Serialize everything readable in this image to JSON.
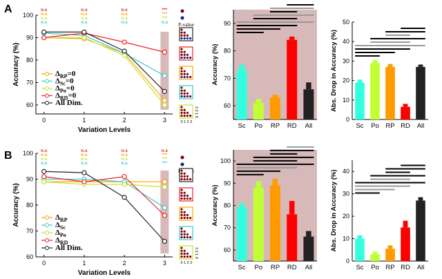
{
  "colors": {
    "rp": "#FFA500",
    "sc": "#33CCCC",
    "po": "#C8E030",
    "rd": "#EE2020",
    "all": "#222222",
    "shade": "#D7B9BA",
    "ns": "#7B0000",
    "s": "#1A1A8C",
    "bar_rp": "#FF9A00",
    "bar_sc": "#33FFE0",
    "bar_po": "#BFFF33",
    "bar_rd": "#FF0000",
    "bar_all": "#222222",
    "sig_black": "#000000",
    "sig_gray": "#999999"
  },
  "panels": [
    {
      "label": "A",
      "ns_rows": {
        "row_colors": [
          "rd",
          "rp",
          "po",
          "sc"
        ],
        "texts": [
          [
            "n.s",
            "n.s",
            "n.s",
            "***"
          ],
          [
            "n.s",
            "n.s",
            "n.s",
            "***"
          ],
          [
            "n.s",
            "n.s",
            "n.s",
            "***"
          ],
          [
            "n.s",
            "n.s",
            "n.s",
            "n.s"
          ]
        ]
      },
      "legend": {
        "n.s.": "n.s.",
        "s.": "s.",
        "p_value": "P-value",
        "axis_nums": [
          "0",
          "1",
          "2",
          "3"
        ],
        "axis_rev": "3 2 1 0"
      },
      "pvalue_grids": [
        {
          "color": "all",
          "s_count": 4
        },
        {
          "color": "rd",
          "s_count": 3
        },
        {
          "color": "rp",
          "s_count": 3
        },
        {
          "color": "sc",
          "s_count": 2
        },
        {
          "color": "po",
          "s_count": 0
        }
      ],
      "chart_data": [
        {
          "type": "line",
          "xlabel": "Variation Levels",
          "ylabel": "Accuracy (%)",
          "x": [
            0,
            1,
            2,
            3
          ],
          "xlim": [
            -0.2,
            3.2
          ],
          "ylim": [
            56,
            100
          ],
          "yticks": [
            60,
            70,
            80,
            90,
            100
          ],
          "shaded_x": 3,
          "legend_entries": [
            "ΔRP=0",
            "ΔSc=0",
            "ΔPo=0",
            "ΔRD=0",
            "All Dim."
          ],
          "series": [
            {
              "key": "rp",
              "name": "ΔRP=0",
              "values": [
                90,
                89.5,
                83,
                62
              ]
            },
            {
              "key": "sc",
              "name": "ΔSc=0",
              "values": [
                92,
                91,
                83,
                73
              ]
            },
            {
              "key": "po",
              "name": "ΔPo=0",
              "values": [
                90,
                90,
                82,
                60
              ]
            },
            {
              "key": "rd",
              "name": "ΔRD=0",
              "values": [
                90,
                92,
                88,
                83.5
              ]
            },
            {
              "key": "all",
              "name": "All Dim.",
              "values": [
                92.5,
                92.5,
                84,
                66
              ]
            }
          ]
        },
        {
          "type": "bar",
          "ylabel": "Accuracy (%)",
          "categories": [
            "Sc",
            "Po",
            "RP",
            "RD",
            "All"
          ],
          "values": [
            73,
            61,
            63,
            84,
            66
          ],
          "errors": [
            2,
            1.5,
            1,
            1.2,
            2.5
          ],
          "ylim": [
            55,
            95
          ],
          "yticks": [
            60,
            70,
            80,
            90
          ],
          "shaded": true,
          "significance_lines": [
            {
              "level": 1,
              "from": 0,
              "to": 1,
              "color": "sig_black"
            },
            {
              "level": 2,
              "from": 0,
              "to": 2,
              "color": "sig_black"
            },
            {
              "level": 3,
              "from": 0,
              "to": 3,
              "color": "sig_black"
            },
            {
              "level": 4,
              "from": 0,
              "to": 4,
              "color": "sig_gray"
            },
            {
              "level": 5,
              "from": 1,
              "to": 3,
              "color": "sig_black"
            },
            {
              "level": 6,
              "from": 1,
              "to": 4,
              "color": "sig_gray"
            },
            {
              "level": 7,
              "from": 2,
              "to": 3,
              "color": "sig_black"
            },
            {
              "level": 8,
              "from": 2,
              "to": 4,
              "color": "sig_gray"
            },
            {
              "level": 9,
              "from": 3,
              "to": 4,
              "color": "sig_black"
            }
          ]
        },
        {
          "type": "bar",
          "ylabel": "Abs. Drop in Accuracy (%)",
          "categories": [
            "Sc",
            "Po",
            "RP",
            "RD",
            "All"
          ],
          "values": [
            19,
            29,
            27,
            6.5,
            27
          ],
          "errors": [
            1.5,
            1.5,
            1.5,
            1.5,
            1.2
          ],
          "ylim": [
            0,
            50
          ],
          "yticks": [
            0,
            10,
            20,
            30,
            40,
            50
          ],
          "shaded": false,
          "significance_lines": [
            {
              "level": 1,
              "from": 0,
              "to": 1,
              "color": "sig_black"
            },
            {
              "level": 2,
              "from": 0,
              "to": 2,
              "color": "sig_black"
            },
            {
              "level": 3,
              "from": 0,
              "to": 3,
              "color": "sig_black"
            },
            {
              "level": 4,
              "from": 0,
              "to": 4,
              "color": "sig_gray"
            },
            {
              "level": 5,
              "from": 1,
              "to": 3,
              "color": "sig_gray"
            },
            {
              "level": 6,
              "from": 1,
              "to": 4,
              "color": "sig_black"
            },
            {
              "level": 7,
              "from": 2,
              "to": 3,
              "color": "sig_gray"
            },
            {
              "level": 8,
              "from": 2,
              "to": 4,
              "color": "sig_black"
            },
            {
              "level": 9,
              "from": 3,
              "to": 4,
              "color": "sig_black"
            }
          ]
        }
      ]
    },
    {
      "label": "B",
      "ns_rows": {
        "row_colors": [
          "rd",
          "rp",
          "po",
          "sc"
        ],
        "texts": [
          [
            "n.s",
            "n.s",
            "n.s",
            "n.s"
          ],
          [
            "n.s",
            "n.s",
            "n.s",
            "***"
          ],
          [
            "n.s",
            "n.s",
            "n.s",
            "***"
          ],
          [
            "n.s",
            "n.s",
            "n.s",
            "***"
          ]
        ]
      },
      "legend": {
        "n.s.": "n.s.",
        "s.": "s.",
        "p_value": "P-value",
        "axis_nums": [
          "0",
          "1",
          "2",
          "3"
        ],
        "axis_rev": "3 2 1 0"
      },
      "pvalue_grids": [
        {
          "color": "all",
          "s_count": 0
        },
        {
          "color": "rd",
          "s_count": 0
        },
        {
          "color": "rp",
          "s_count": 0
        },
        {
          "color": "sc",
          "s_count": 1
        },
        {
          "color": "po",
          "s_count": 0
        }
      ],
      "chart_data": [
        {
          "type": "line",
          "xlabel": "Variation Levels",
          "ylabel": "Accuracy (%)",
          "x": [
            0,
            1,
            2,
            3
          ],
          "xlim": [
            -0.2,
            3.2
          ],
          "ylim": [
            60,
            100
          ],
          "yticks": [
            60,
            70,
            80,
            90,
            100
          ],
          "shaded_x": 3,
          "legend_entries": [
            "ΔRP",
            "ΔSc",
            "ΔPo",
            "ΔRD",
            "All Dim."
          ],
          "series": [
            {
              "key": "rp",
              "name": "ΔRP",
              "values": [
                89,
                89,
                89,
                89
              ]
            },
            {
              "key": "sc",
              "name": "ΔSc",
              "values": [
                90,
                90,
                89,
                79
              ]
            },
            {
              "key": "po",
              "name": "ΔPo",
              "values": [
                89,
                88,
                88,
                87
              ]
            },
            {
              "key": "rd",
              "name": "ΔRD",
              "values": [
                91,
                89,
                91,
                76
              ]
            },
            {
              "key": "all",
              "name": "All Dim.",
              "values": [
                93,
                92.5,
                83,
                66
              ]
            }
          ]
        },
        {
          "type": "bar",
          "ylabel": "Accuracy (%)",
          "categories": [
            "Sc",
            "Po",
            "RP",
            "RD",
            "All"
          ],
          "values": [
            79,
            88,
            89,
            76,
            66
          ],
          "errors": [
            2,
            3,
            3,
            6,
            2.5
          ],
          "ylim": [
            55,
            105
          ],
          "yticks": [
            60,
            70,
            80,
            90,
            100
          ],
          "shaded": true,
          "significance_lines": [
            {
              "level": 1,
              "from": 0,
              "to": 1,
              "color": "sig_black"
            },
            {
              "level": 2,
              "from": 0,
              "to": 2,
              "color": "sig_black"
            },
            {
              "level": 3,
              "from": 0,
              "to": 3,
              "color": "sig_gray"
            },
            {
              "level": 4,
              "from": 0,
              "to": 4,
              "color": "sig_black"
            },
            {
              "level": 5,
              "from": 1,
              "to": 3,
              "color": "sig_black"
            },
            {
              "level": 6,
              "from": 1,
              "to": 4,
              "color": "sig_black"
            },
            {
              "level": 7,
              "from": 2,
              "to": 3,
              "color": "sig_black"
            },
            {
              "level": 8,
              "from": 2,
              "to": 4,
              "color": "sig_black"
            },
            {
              "level": 9,
              "from": 3,
              "to": 4,
              "color": "sig_gray"
            }
          ]
        },
        {
          "type": "bar",
          "ylabel": "Abs. Drop in Accuracy (%)",
          "categories": [
            "Sc",
            "Po",
            "RP",
            "RD",
            "All"
          ],
          "values": [
            10,
            3,
            5.5,
            15,
            27
          ],
          "errors": [
            1.5,
            1.2,
            1.5,
            3,
            1.5
          ],
          "ylim": [
            0,
            45
          ],
          "yticks": [
            0,
            10,
            20,
            30,
            40
          ],
          "shaded": false,
          "significance_lines": [
            {
              "level": 1,
              "from": 0,
              "to": 1,
              "color": "sig_black"
            },
            {
              "level": 2,
              "from": 0,
              "to": 2,
              "color": "sig_gray"
            },
            {
              "level": 3,
              "from": 0,
              "to": 3,
              "color": "sig_gray"
            },
            {
              "level": 4,
              "from": 0,
              "to": 4,
              "color": "sig_black"
            },
            {
              "level": 5,
              "from": 1,
              "to": 3,
              "color": "sig_gray"
            },
            {
              "level": 6,
              "from": 1,
              "to": 4,
              "color": "sig_black"
            },
            {
              "level": 7,
              "from": 2,
              "to": 3,
              "color": "sig_black"
            },
            {
              "level": 8,
              "from": 2,
              "to": 4,
              "color": "sig_black"
            },
            {
              "level": 9,
              "from": 3,
              "to": 4,
              "color": "sig_black"
            }
          ]
        }
      ]
    }
  ]
}
